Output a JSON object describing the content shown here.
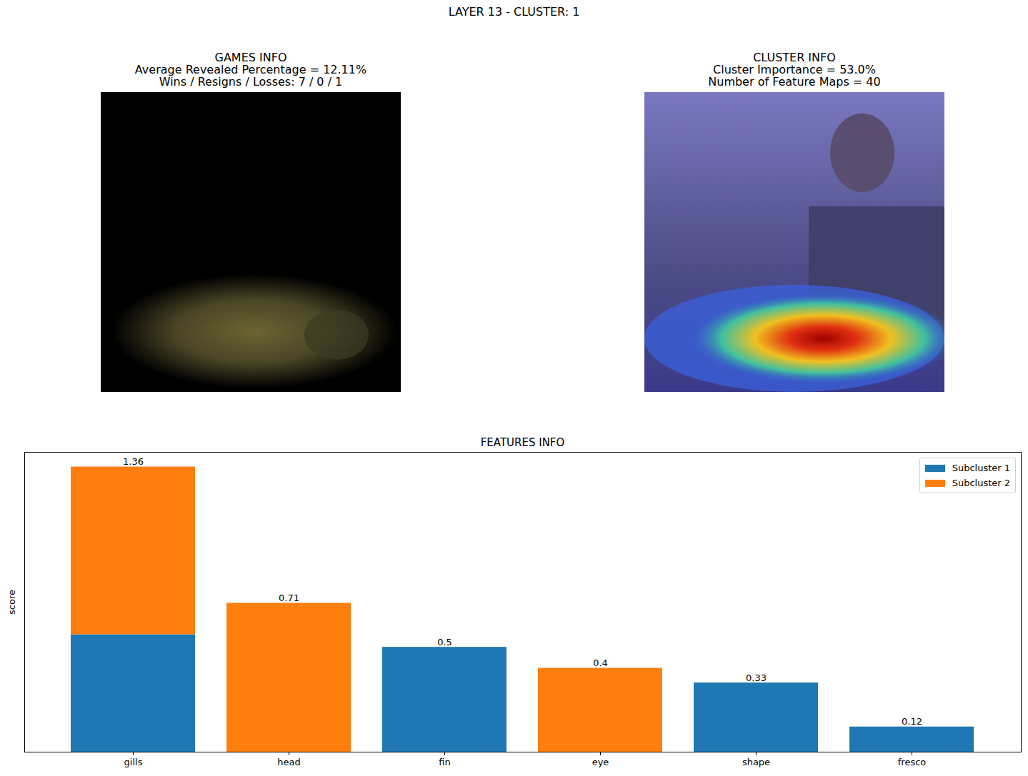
{
  "title": "LAYER 13 - CLUSTER: 1",
  "panels": [
    {
      "title": "GAMES INFO",
      "lines": [
        "Average Revealed Percentage = 12.11%",
        "Wins / Resigns / Losses: 7 / 0 / 1"
      ]
    },
    {
      "title": "CLUSTER INFO",
      "lines": [
        "Cluster Importance = 53.0%",
        "Number of Feature Maps = 40"
      ]
    }
  ],
  "chart_data": {
    "type": "bar",
    "title": "FEATURES INFO",
    "y_label": "score",
    "categories": [
      "gills",
      "head",
      "fin",
      "eye",
      "shape",
      "fresco"
    ],
    "series": [
      {
        "name": "Subcluster 1",
        "color": "#1f77b4",
        "values": [
          0.56,
          null,
          0.5,
          null,
          0.33,
          0.12
        ]
      },
      {
        "name": "Subcluster 2",
        "color": "#ff7f0e",
        "values": [
          0.8,
          0.71,
          null,
          0.4,
          null,
          null
        ]
      }
    ],
    "totals": [
      1.36,
      0.71,
      0.5,
      0.4,
      0.33,
      0.12
    ],
    "stacked": true,
    "data_labels": true,
    "ylim": [
      0,
      1.43
    ],
    "tick_labels": "x",
    "legend": "upper right"
  }
}
